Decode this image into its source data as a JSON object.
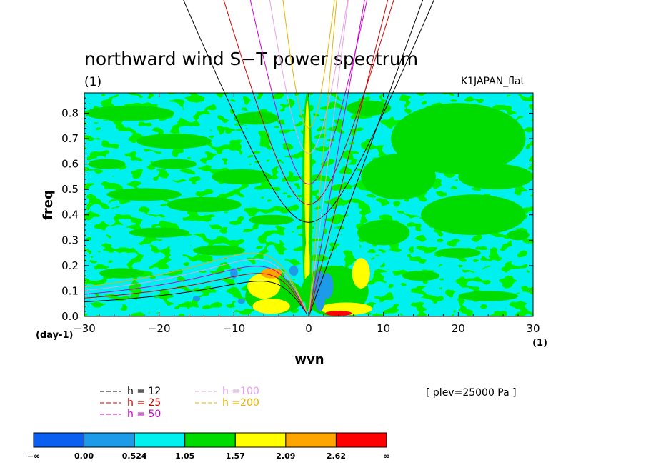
{
  "figure": {
    "title": "northward wind S−T power spectrum",
    "subtitle": "(1)",
    "dataset": "K1JAPAN_flat",
    "level": "[ plev=25000 Pa ]",
    "y_unit": "(day-1)",
    "x_unit": "(1)"
  },
  "chart_data": {
    "type": "heatmap",
    "title": "northward wind S−T power spectrum",
    "xlabel": "wvn",
    "ylabel": "freq",
    "xlim": [
      -30,
      30
    ],
    "ylim": [
      0,
      0.88
    ],
    "x_ticks": [
      -30,
      -20,
      -10,
      0,
      10,
      20,
      30
    ],
    "y_ticks": [
      0.0,
      0.1,
      0.2,
      0.3,
      0.4,
      0.5,
      0.6,
      0.7,
      0.8
    ],
    "x_tick_labels": [
      "−30",
      "−20",
      "−10",
      "0",
      "10",
      "20",
      "30"
    ],
    "y_tick_labels": [
      "0.0",
      "0.1",
      "0.2",
      "0.3",
      "0.4",
      "0.5",
      "0.6",
      "0.7",
      "0.8"
    ],
    "color_levels": [
      "−∞",
      "0.00",
      "0.524",
      "1.05",
      "1.57",
      "2.09",
      "2.62",
      "∞"
    ],
    "colors": [
      "#0a5ff0",
      "#1e9be8",
      "#00f0f0",
      "#00dc00",
      "#ffff00",
      "#ffa500",
      "#ff0000"
    ],
    "background_level_color": "#00f0f0",
    "patches": [
      {
        "x": -0.2,
        "y": 0.45,
        "rx": 0.7,
        "ry": 0.43,
        "level": 3
      },
      {
        "x": -0.2,
        "y": 0.55,
        "rx": 0.35,
        "ry": 0.3,
        "level": 4
      },
      {
        "x": -0.2,
        "y": 0.2,
        "rx": 0.35,
        "ry": 0.1,
        "level": 4
      },
      {
        "x": -4.5,
        "y": 0.08,
        "rx": 4.0,
        "ry": 0.07,
        "level": 3
      },
      {
        "x": -6.0,
        "y": 0.12,
        "rx": 2.2,
        "ry": 0.05,
        "level": 4
      },
      {
        "x": -5.0,
        "y": 0.04,
        "rx": 2.5,
        "ry": 0.03,
        "level": 4
      },
      {
        "x": -5.0,
        "y": 0.17,
        "rx": 1.4,
        "ry": 0.02,
        "level": 5
      },
      {
        "x": 3.5,
        "y": 0.1,
        "rx": 4.5,
        "ry": 0.1,
        "level": 3
      },
      {
        "x": 5.0,
        "y": 0.03,
        "rx": 3.5,
        "ry": 0.025,
        "level": 4
      },
      {
        "x": 4.0,
        "y": 0.012,
        "rx": 1.8,
        "ry": 0.01,
        "level": 6
      },
      {
        "x": 7.0,
        "y": 0.17,
        "rx": 1.2,
        "ry": 0.06,
        "level": 4
      },
      {
        "x": 1.5,
        "y": 0.1,
        "rx": 0.8,
        "ry": 0.08,
        "level": 1
      },
      {
        "x": 2.5,
        "y": 0.12,
        "rx": 0.8,
        "ry": 0.05,
        "level": 1
      },
      {
        "x": -2.0,
        "y": 0.18,
        "rx": 0.6,
        "ry": 0.02,
        "level": 1
      },
      {
        "x": -10.0,
        "y": 0.17,
        "rx": 0.5,
        "ry": 0.02,
        "level": 1
      },
      {
        "x": 20.0,
        "y": 0.7,
        "rx": 9.0,
        "ry": 0.14,
        "level": 3
      },
      {
        "x": 22.0,
        "y": 0.4,
        "rx": 7.0,
        "ry": 0.08,
        "level": 3
      },
      {
        "x": 12.0,
        "y": 0.55,
        "rx": 5.0,
        "ry": 0.09,
        "level": 3
      },
      {
        "x": 10.0,
        "y": 0.33,
        "rx": 3.5,
        "ry": 0.05,
        "level": 3
      },
      {
        "x": 25.0,
        "y": 0.55,
        "rx": 5.0,
        "ry": 0.05,
        "level": 3
      },
      {
        "x": -24.0,
        "y": 0.8,
        "rx": 6.0,
        "ry": 0.03,
        "level": 3
      },
      {
        "x": -18.0,
        "y": 0.69,
        "rx": 5.0,
        "ry": 0.03,
        "level": 3
      },
      {
        "x": -14.0,
        "y": 0.44,
        "rx": 5.0,
        "ry": 0.03,
        "level": 3
      },
      {
        "x": -22.0,
        "y": 0.48,
        "rx": 5.0,
        "ry": 0.025,
        "level": 3
      },
      {
        "x": -9.0,
        "y": 0.55,
        "rx": 4.0,
        "ry": 0.03,
        "level": 3
      },
      {
        "x": -20.0,
        "y": 0.33,
        "rx": 4.0,
        "ry": 0.02,
        "level": 3
      },
      {
        "x": -12.0,
        "y": 0.26,
        "rx": 3.5,
        "ry": 0.02,
        "level": 3
      },
      {
        "x": -25.0,
        "y": 0.17,
        "rx": 3.0,
        "ry": 0.02,
        "level": 3
      },
      {
        "x": -7.0,
        "y": 0.78,
        "rx": 3.0,
        "ry": 0.025,
        "level": 3
      },
      {
        "x": 8.0,
        "y": 0.82,
        "rx": 3.0,
        "ry": 0.03,
        "level": 3
      },
      {
        "x": 20.0,
        "y": 0.25,
        "rx": 3.0,
        "ry": 0.02,
        "level": 3
      },
      {
        "x": 24.0,
        "y": 0.08,
        "rx": 4.0,
        "ry": 0.02,
        "level": 3
      },
      {
        "x": -18.0,
        "y": 0.6,
        "rx": 3.0,
        "ry": 0.02,
        "level": 3
      },
      {
        "x": -27.0,
        "y": 0.6,
        "rx": 2.5,
        "ry": 0.02,
        "level": 3
      },
      {
        "x": -5.0,
        "y": 0.38,
        "rx": 3.0,
        "ry": 0.02,
        "level": 3
      },
      {
        "x": 15.0,
        "y": 0.16,
        "rx": 2.5,
        "ry": 0.02,
        "level": 3
      },
      {
        "x": 28.0,
        "y": 0.32,
        "rx": 1.5,
        "ry": 0.02,
        "level": 3
      },
      {
        "x": -15.0,
        "y": 0.07,
        "rx": 0.5,
        "ry": 0.01,
        "level": 1
      },
      {
        "x": -9.0,
        "y": 0.06,
        "rx": 0.5,
        "ry": 0.01,
        "level": 1
      }
    ],
    "dispersion_curves": [
      {
        "name": "h = 12",
        "depth": 12,
        "color": "#000000"
      },
      {
        "name": "h = 25",
        "depth": 25,
        "color": "#cc0000"
      },
      {
        "name": "h = 50",
        "depth": 50,
        "color": "#cc00cc"
      },
      {
        "name": "h =100",
        "depth": 100,
        "color": "#e6a0e6"
      },
      {
        "name": "h =200",
        "depth": 200,
        "color": "#e6b400"
      }
    ],
    "legend_position": "bottom-left",
    "grid": false
  }
}
